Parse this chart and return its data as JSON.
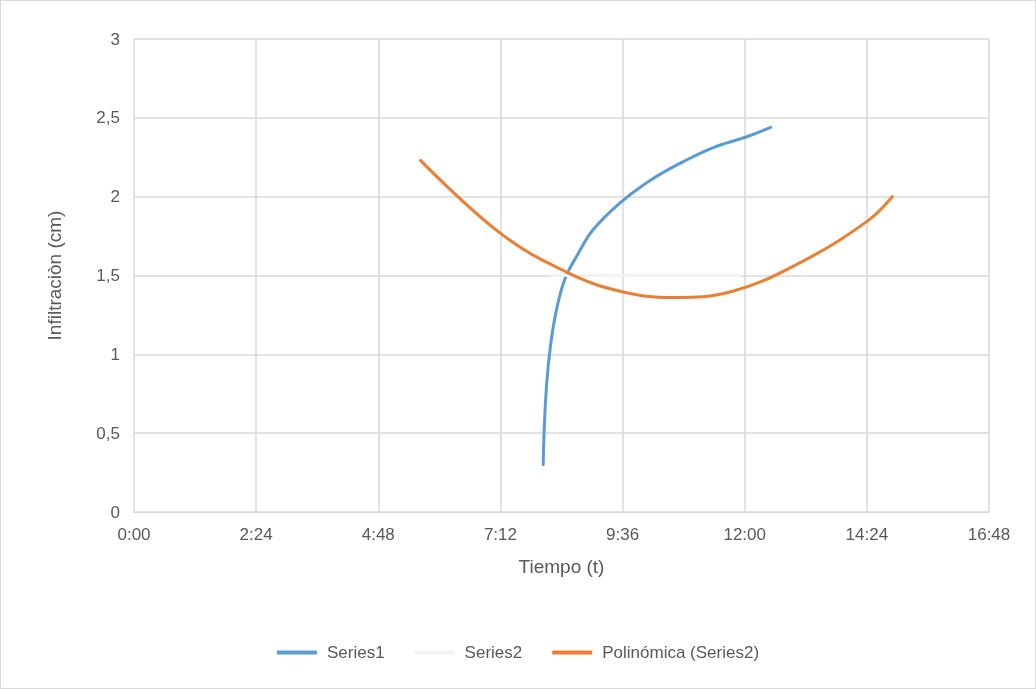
{
  "chart_data": {
    "type": "line",
    "xlabel": "Tiempo (t)",
    "ylabel": "Infiltraciòn (cm)",
    "xlim": [
      0,
      16.8
    ],
    "xticks": [
      {
        "value": 0,
        "label": "0:00"
      },
      {
        "value": 2.4,
        "label": "2:24"
      },
      {
        "value": 4.8,
        "label": "4:48"
      },
      {
        "value": 7.2,
        "label": "7:12"
      },
      {
        "value": 9.6,
        "label": "9:36"
      },
      {
        "value": 12,
        "label": "12:00"
      },
      {
        "value": 14.4,
        "label": "14:24"
      },
      {
        "value": 16.8,
        "label": "16:48"
      }
    ],
    "ylim": [
      0,
      3
    ],
    "yticks": [
      {
        "value": 0,
        "label": "0"
      },
      {
        "value": 0.5,
        "label": "0,5"
      },
      {
        "value": 1,
        "label": "1"
      },
      {
        "value": 1.5,
        "label": "1,5"
      },
      {
        "value": 2,
        "label": "2"
      },
      {
        "value": 2.5,
        "label": "2,5"
      },
      {
        "value": 3,
        "label": "3"
      }
    ],
    "grid": true,
    "legend": "bottom",
    "marker": "none",
    "line_style": "solid",
    "series": [
      {
        "name": "Series1",
        "color": "#5b9bd5",
        "x": [
          8.04,
          8.06,
          8.11,
          8.19,
          8.3,
          8.47,
          8.73,
          9.02,
          9.55,
          10.08,
          10.66,
          11.37,
          12.04,
          12.51
        ],
        "values": [
          0.3,
          0.52,
          0.82,
          1.07,
          1.28,
          1.48,
          1.64,
          1.79,
          1.96,
          2.09,
          2.2,
          2.31,
          2.38,
          2.44
        ]
      },
      {
        "name": "Series2",
        "color": "#f2f2f2",
        "x": [
          8.2,
          9.6,
          11.1,
          11.9
        ],
        "values": [
          1.5,
          1.5,
          1.5,
          1.5
        ]
      },
      {
        "name": "Polinómica (Series2)",
        "color": "#ed7d31",
        "x": [
          5.63,
          7.19,
          8.51,
          9.55,
          10.59,
          11.76,
          13.08,
          14.39,
          14.9
        ],
        "values": [
          2.23,
          1.77,
          1.52,
          1.4,
          1.36,
          1.4,
          1.58,
          1.84,
          2.0
        ]
      }
    ]
  }
}
